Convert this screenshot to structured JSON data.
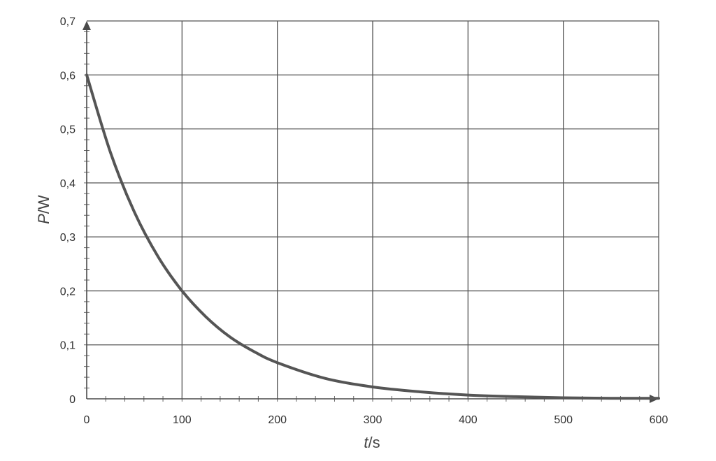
{
  "chart_data": {
    "type": "line",
    "xlabel_italic": "t",
    "xlabel_unit": "/s",
    "ylabel_italic": "P",
    "ylabel_unit": "/W",
    "xlim": [
      0,
      600
    ],
    "ylim": [
      0,
      0.7
    ],
    "x_ticks": [
      0,
      100,
      200,
      300,
      400,
      500,
      600
    ],
    "y_ticks": [
      0,
      0.1,
      0.2,
      0.3,
      0.4,
      0.5,
      0.6,
      0.7
    ],
    "x_tick_labels": [
      "0",
      "100",
      "200",
      "300",
      "400",
      "500",
      "600"
    ],
    "y_tick_labels": [
      "0",
      "0,1",
      "0,2",
      "0,3",
      "0,4",
      "0,5",
      "0,6",
      "0,7"
    ],
    "grid": true,
    "series": [
      {
        "x": [
          0,
          25,
          50,
          75,
          100,
          125,
          150,
          175,
          200,
          250,
          300,
          350,
          400,
          450,
          500,
          550,
          600
        ],
        "y": [
          0.6,
          0.456,
          0.346,
          0.263,
          0.2,
          0.152,
          0.115,
          0.088,
          0.067,
          0.038,
          0.022,
          0.013,
          0.007,
          0.004,
          0.002,
          0.001,
          0.001
        ],
        "color": "#555555"
      }
    ]
  }
}
